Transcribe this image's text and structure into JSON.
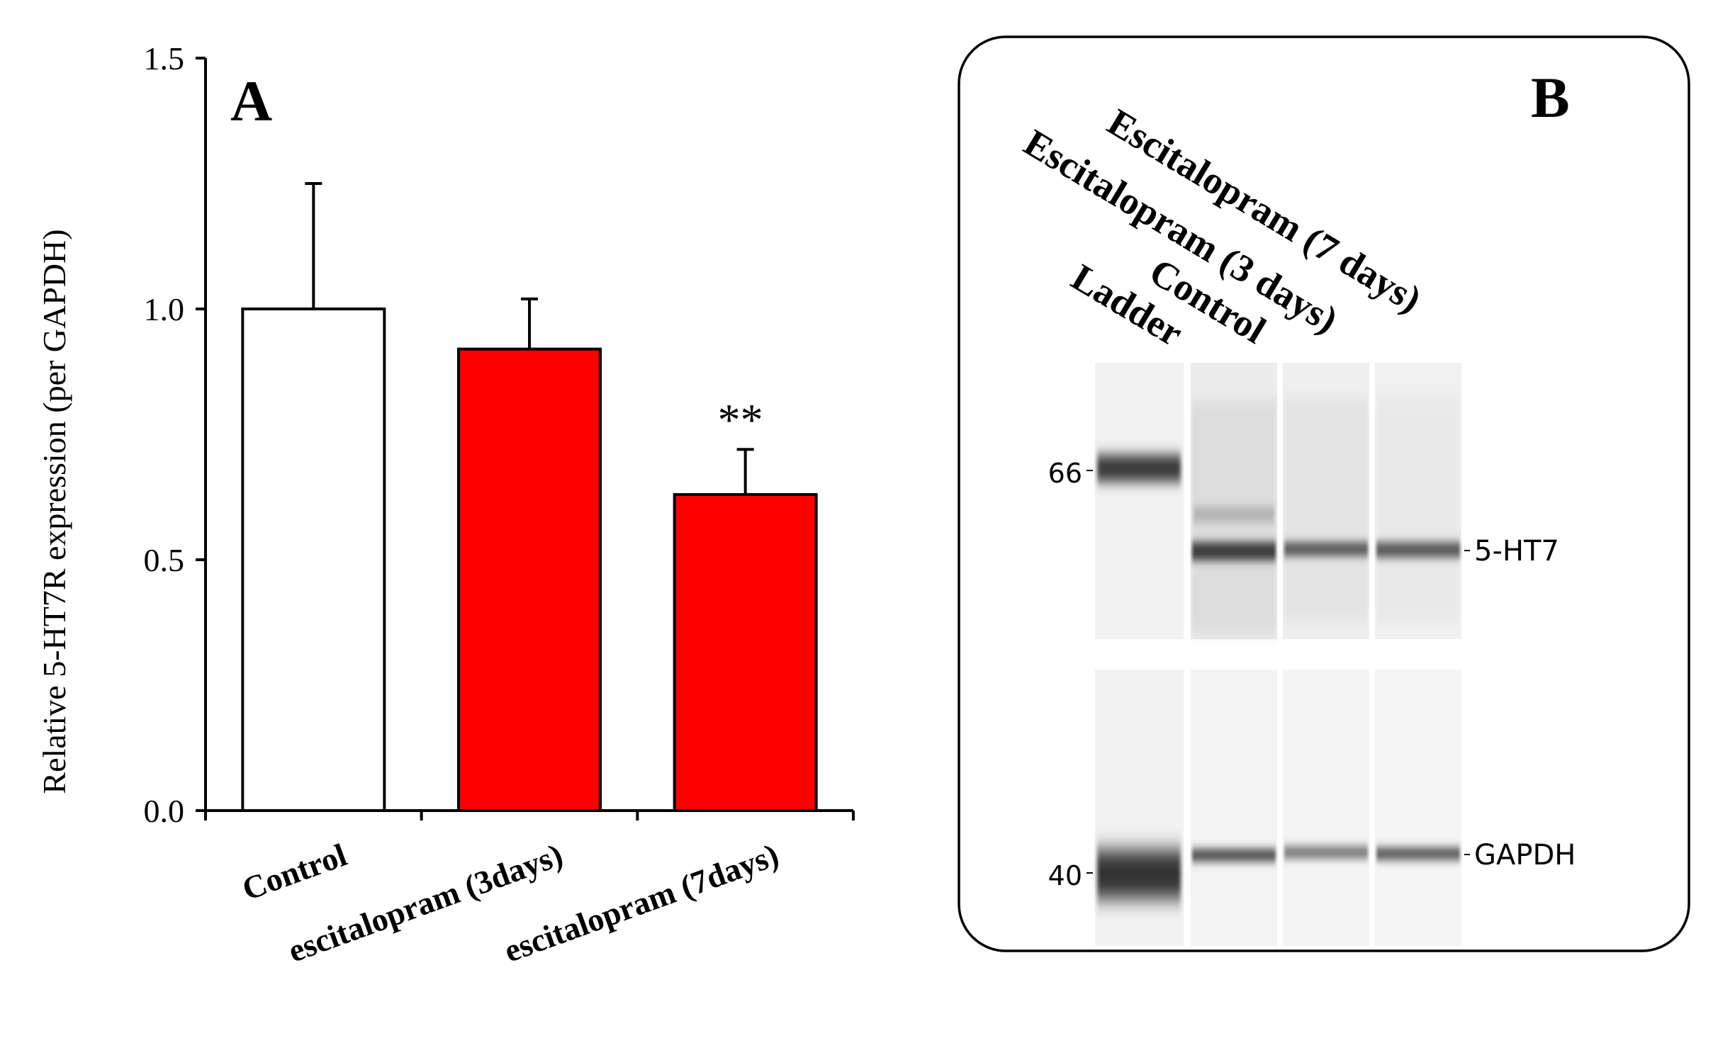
{
  "chart_data": {
    "type": "bar",
    "panel_label": "A",
    "ylabel": "Relative  5-HT7R expression (per GAPDH)",
    "xlabel": "",
    "ylim": [
      0,
      1.5
    ],
    "yticks": [
      "0.0",
      "0.5",
      "1.0",
      "1.5"
    ],
    "categories": [
      "Control",
      "escitalopram (3days)",
      "escitalopram (7days)"
    ],
    "values": [
      1.0,
      0.92,
      0.63
    ],
    "errors": [
      0.25,
      0.1,
      0.09
    ],
    "bar_colors": [
      "#ffffff",
      "#ff0000",
      "#ff0000"
    ],
    "significance": [
      "",
      "",
      "**"
    ],
    "grid": false
  },
  "blot": {
    "panel_label": "B",
    "lane_labels": [
      "Ladder",
      "Control",
      "Escitalopram (3 days)",
      "Escitalopram (7 days)"
    ],
    "marker_labels": [
      "66",
      "40"
    ],
    "band_labels": [
      "5-HT7",
      "GAPDH"
    ]
  }
}
